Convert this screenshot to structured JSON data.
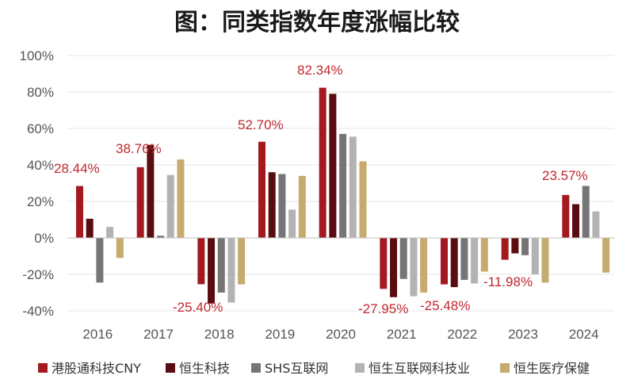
{
  "chart_data": {
    "type": "bar",
    "title": "图：同类指数年度涨幅比较",
    "categories": [
      "2016",
      "2017",
      "2018",
      "2019",
      "2020",
      "2021",
      "2022",
      "2023",
      "2024"
    ],
    "y_ticks": [
      "100%",
      "80%",
      "60%",
      "40%",
      "20%",
      "0%",
      "-20%",
      "-40%"
    ],
    "ylim": [
      -40,
      100
    ],
    "grid": true,
    "legend_position": "bottom",
    "series": [
      {
        "name": "港股通科技CNY",
        "color": "#a3191f",
        "values": [
          28.44,
          38.76,
          -25.4,
          52.7,
          82.34,
          -27.95,
          -25.48,
          -11.98,
          23.57
        ]
      },
      {
        "name": "恒生科技",
        "color": "#5a0d10",
        "values": [
          10.5,
          51.0,
          -36.0,
          36.0,
          79.0,
          -32.5,
          -27.0,
          -8.5,
          18.5
        ]
      },
      {
        "name": "SHS互联网",
        "color": "#757575",
        "values": [
          -24.5,
          1.2,
          -30.0,
          35.0,
          57.0,
          -22.5,
          -23.0,
          -9.5,
          28.5
        ]
      },
      {
        "name": "恒生互联网科技业",
        "color": "#b3b3b3",
        "values": [
          6.0,
          34.5,
          -35.5,
          15.5,
          55.5,
          -32.0,
          -25.0,
          -20.0,
          14.5
        ]
      },
      {
        "name": "恒生医疗保健",
        "color": "#c7aa6e",
        "values": [
          -11.0,
          43.0,
          -25.5,
          34.0,
          42.0,
          -30.0,
          -18.5,
          -24.5,
          -19.0
        ]
      }
    ],
    "data_labels": [
      {
        "category": "2016",
        "text": "28.44%"
      },
      {
        "category": "2017",
        "text": "38.76%"
      },
      {
        "category": "2018",
        "text": "-25.40%"
      },
      {
        "category": "2019",
        "text": "52.70%"
      },
      {
        "category": "2020",
        "text": "82.34%"
      },
      {
        "category": "2021",
        "text": "-27.95%"
      },
      {
        "category": "2022",
        "text": "-25.48%"
      },
      {
        "category": "2023",
        "text": "-11.98%"
      },
      {
        "category": "2024",
        "text": "23.57%"
      }
    ]
  }
}
